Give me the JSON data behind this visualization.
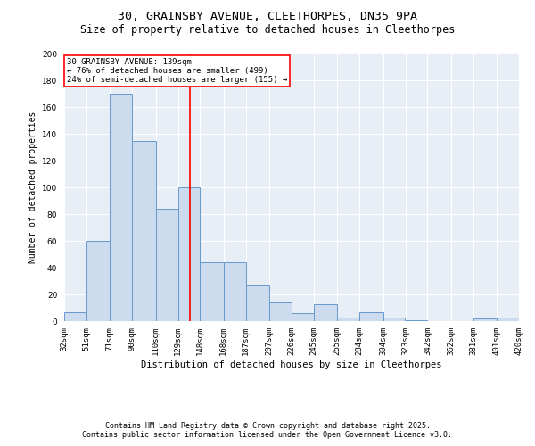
{
  "title_line1": "30, GRAINSBY AVENUE, CLEETHORPES, DN35 9PA",
  "title_line2": "Size of property relative to detached houses in Cleethorpes",
  "xlabel": "Distribution of detached houses by size in Cleethorpes",
  "ylabel": "Number of detached properties",
  "bin_labels": [
    "32sqm",
    "51sqm",
    "71sqm",
    "90sqm",
    "110sqm",
    "129sqm",
    "148sqm",
    "168sqm",
    "187sqm",
    "207sqm",
    "226sqm",
    "245sqm",
    "265sqm",
    "284sqm",
    "304sqm",
    "323sqm",
    "342sqm",
    "362sqm",
    "381sqm",
    "401sqm",
    "420sqm"
  ],
  "bin_edges": [
    32,
    51,
    71,
    90,
    110,
    129,
    148,
    168,
    187,
    207,
    226,
    245,
    265,
    284,
    304,
    323,
    342,
    362,
    381,
    401,
    420
  ],
  "bar_heights": [
    7,
    60,
    170,
    135,
    84,
    100,
    44,
    44,
    27,
    14,
    6,
    13,
    3,
    7,
    3,
    1,
    0,
    0,
    2,
    3
  ],
  "bar_color": "#ccdcee",
  "bar_edgecolor": "#6699cc",
  "red_line_x": 139,
  "annotation_text": "30 GRAINSBY AVENUE: 139sqm\n← 76% of detached houses are smaller (499)\n24% of semi-detached houses are larger (155) →",
  "annotation_box_color": "white",
  "annotation_box_edgecolor": "red",
  "ylim": [
    0,
    200
  ],
  "yticks": [
    0,
    20,
    40,
    60,
    80,
    100,
    120,
    140,
    160,
    180,
    200
  ],
  "background_color": "#e8eef6",
  "grid_color": "white",
  "footer_line1": "Contains HM Land Registry data © Crown copyright and database right 2025.",
  "footer_line2": "Contains public sector information licensed under the Open Government Licence v3.0.",
  "title_fontsize": 9.5,
  "subtitle_fontsize": 8.5,
  "annotation_fontsize": 6.5,
  "footer_fontsize": 6,
  "ylabel_fontsize": 7,
  "xlabel_fontsize": 7.5,
  "tick_fontsize": 6.5
}
